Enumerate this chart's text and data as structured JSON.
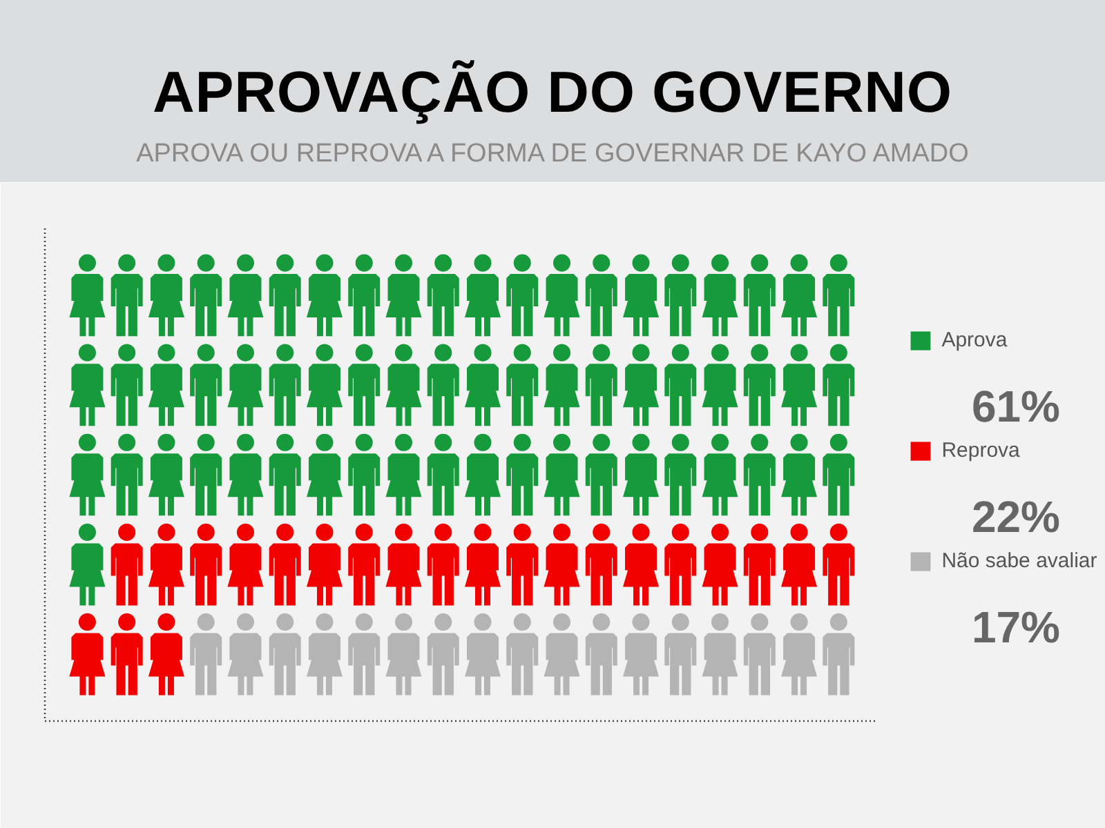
{
  "chart_data": {
    "type": "other",
    "title": "APROVAÇÃO DO GOVERNO",
    "subtitle": "APROVA OU REPROVA A FORMA DE GOVERNAR DE KAYO AMADO",
    "series": [
      {
        "name": "Aprova",
        "color": "#179a3c",
        "values": [
          61
        ],
        "value_labels": [
          "61%"
        ]
      },
      {
        "name": "Reprova",
        "color": "#f20000",
        "values": [
          22
        ],
        "value_labels": [
          "22%"
        ]
      },
      {
        "name": "Não sabe avaliar",
        "color": "#b4b4b4",
        "values": [
          17
        ],
        "value_labels": [
          "17%"
        ]
      }
    ],
    "legend": "right"
  }
}
